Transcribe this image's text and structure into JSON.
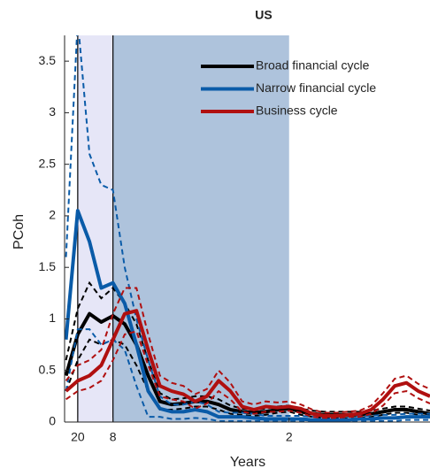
{
  "chart_data": {
    "type": "line",
    "title": "US",
    "xlabel": "Years",
    "ylabel": "PCoh",
    "xlim": [
      0.022,
      0.8
    ],
    "ylim": [
      0,
      3.75
    ],
    "xticks": [
      {
        "value": 0.05,
        "label": "20"
      },
      {
        "value": 0.125,
        "label": "8"
      },
      {
        "value": 0.5,
        "label": "2"
      }
    ],
    "yticks": [
      0,
      0.5,
      1,
      1.5,
      2,
      2.5,
      3,
      3.5
    ],
    "legend": "upper right",
    "shaded": [
      {
        "from": 0.05,
        "to": 0.125,
        "color": "#e6e6f7"
      },
      {
        "from": 0.125,
        "to": 0.5,
        "color": "#aec3dc"
      }
    ],
    "x": [
      0.025,
      0.05,
      0.075,
      0.1,
      0.125,
      0.15,
      0.175,
      0.2,
      0.225,
      0.25,
      0.275,
      0.3,
      0.325,
      0.35,
      0.375,
      0.4,
      0.425,
      0.45,
      0.475,
      0.5,
      0.525,
      0.55,
      0.575,
      0.6,
      0.625,
      0.65,
      0.675,
      0.7,
      0.725,
      0.75,
      0.775,
      0.8
    ],
    "series": [
      {
        "name": "Broad financial cycle",
        "color": "#000000",
        "values": [
          0.45,
          0.85,
          1.05,
          0.97,
          1.03,
          0.95,
          0.75,
          0.45,
          0.2,
          0.17,
          0.18,
          0.2,
          0.2,
          0.17,
          0.12,
          0.1,
          0.09,
          0.1,
          0.12,
          0.13,
          0.1,
          0.08,
          0.07,
          0.07,
          0.07,
          0.07,
          0.08,
          0.1,
          0.12,
          0.12,
          0.1,
          0.08
        ],
        "lower": [
          0.3,
          0.6,
          0.8,
          0.75,
          0.8,
          0.75,
          0.55,
          0.3,
          0.12,
          0.12,
          0.13,
          0.15,
          0.15,
          0.12,
          0.08,
          0.07,
          0.06,
          0.07,
          0.09,
          0.1,
          0.07,
          0.05,
          0.04,
          0.04,
          0.04,
          0.04,
          0.05,
          0.07,
          0.09,
          0.09,
          0.07,
          0.05
        ],
        "upper": [
          0.6,
          1.1,
          1.35,
          1.2,
          1.3,
          1.15,
          0.95,
          0.6,
          0.28,
          0.22,
          0.23,
          0.25,
          0.25,
          0.22,
          0.16,
          0.13,
          0.12,
          0.13,
          0.15,
          0.16,
          0.13,
          0.11,
          0.1,
          0.1,
          0.1,
          0.1,
          0.11,
          0.13,
          0.15,
          0.15,
          0.13,
          0.11
        ]
      },
      {
        "name": "Narrow financial cycle",
        "color": "#0a5ba8",
        "values": [
          0.8,
          2.05,
          1.75,
          1.3,
          1.35,
          1.15,
          0.75,
          0.3,
          0.13,
          0.1,
          0.1,
          0.12,
          0.1,
          0.05,
          0.05,
          0.05,
          0.04,
          0.03,
          0.03,
          0.03,
          0.03,
          0.02,
          0.02,
          0.02,
          0.02,
          0.03,
          0.03,
          0.04,
          0.04,
          0.05,
          0.05,
          0.05
        ],
        "lower": [
          0.3,
          0.9,
          0.9,
          0.75,
          0.8,
          0.7,
          0.35,
          0.05,
          0.05,
          0.03,
          0.03,
          0.04,
          0.03,
          0.01,
          0.01,
          0.01,
          0.01,
          0.01,
          0.01,
          0.01,
          0.01,
          0.01,
          0.01,
          0.01,
          0.01,
          0.01,
          0.01,
          0.01,
          0.01,
          0.02,
          0.02,
          0.02
        ],
        "upper": [
          1.6,
          3.9,
          2.6,
          2.3,
          2.25,
          1.5,
          1.0,
          0.6,
          0.25,
          0.17,
          0.17,
          0.2,
          0.17,
          0.1,
          0.09,
          0.09,
          0.08,
          0.06,
          0.06,
          0.06,
          0.06,
          0.05,
          0.05,
          0.05,
          0.05,
          0.06,
          0.06,
          0.07,
          0.07,
          0.08,
          0.08,
          0.08
        ]
      },
      {
        "name": "Business cycle",
        "color": "#b01010",
        "values": [
          0.3,
          0.4,
          0.45,
          0.55,
          0.8,
          1.05,
          1.08,
          0.7,
          0.35,
          0.3,
          0.27,
          0.2,
          0.25,
          0.4,
          0.3,
          0.15,
          0.12,
          0.15,
          0.14,
          0.15,
          0.13,
          0.08,
          0.06,
          0.06,
          0.07,
          0.08,
          0.12,
          0.22,
          0.35,
          0.38,
          0.3,
          0.25
        ],
        "lower": [
          0.22,
          0.3,
          0.33,
          0.4,
          0.6,
          0.85,
          0.88,
          0.55,
          0.25,
          0.22,
          0.2,
          0.13,
          0.18,
          0.3,
          0.22,
          0.1,
          0.08,
          0.1,
          0.1,
          0.11,
          0.09,
          0.05,
          0.04,
          0.04,
          0.05,
          0.05,
          0.08,
          0.16,
          0.28,
          0.3,
          0.23,
          0.18
        ],
        "upper": [
          0.4,
          0.55,
          0.6,
          0.7,
          1.05,
          1.3,
          1.3,
          0.85,
          0.45,
          0.38,
          0.35,
          0.27,
          0.32,
          0.5,
          0.38,
          0.2,
          0.17,
          0.2,
          0.19,
          0.2,
          0.17,
          0.12,
          0.09,
          0.09,
          0.1,
          0.11,
          0.16,
          0.28,
          0.42,
          0.45,
          0.37,
          0.32
        ]
      }
    ]
  }
}
